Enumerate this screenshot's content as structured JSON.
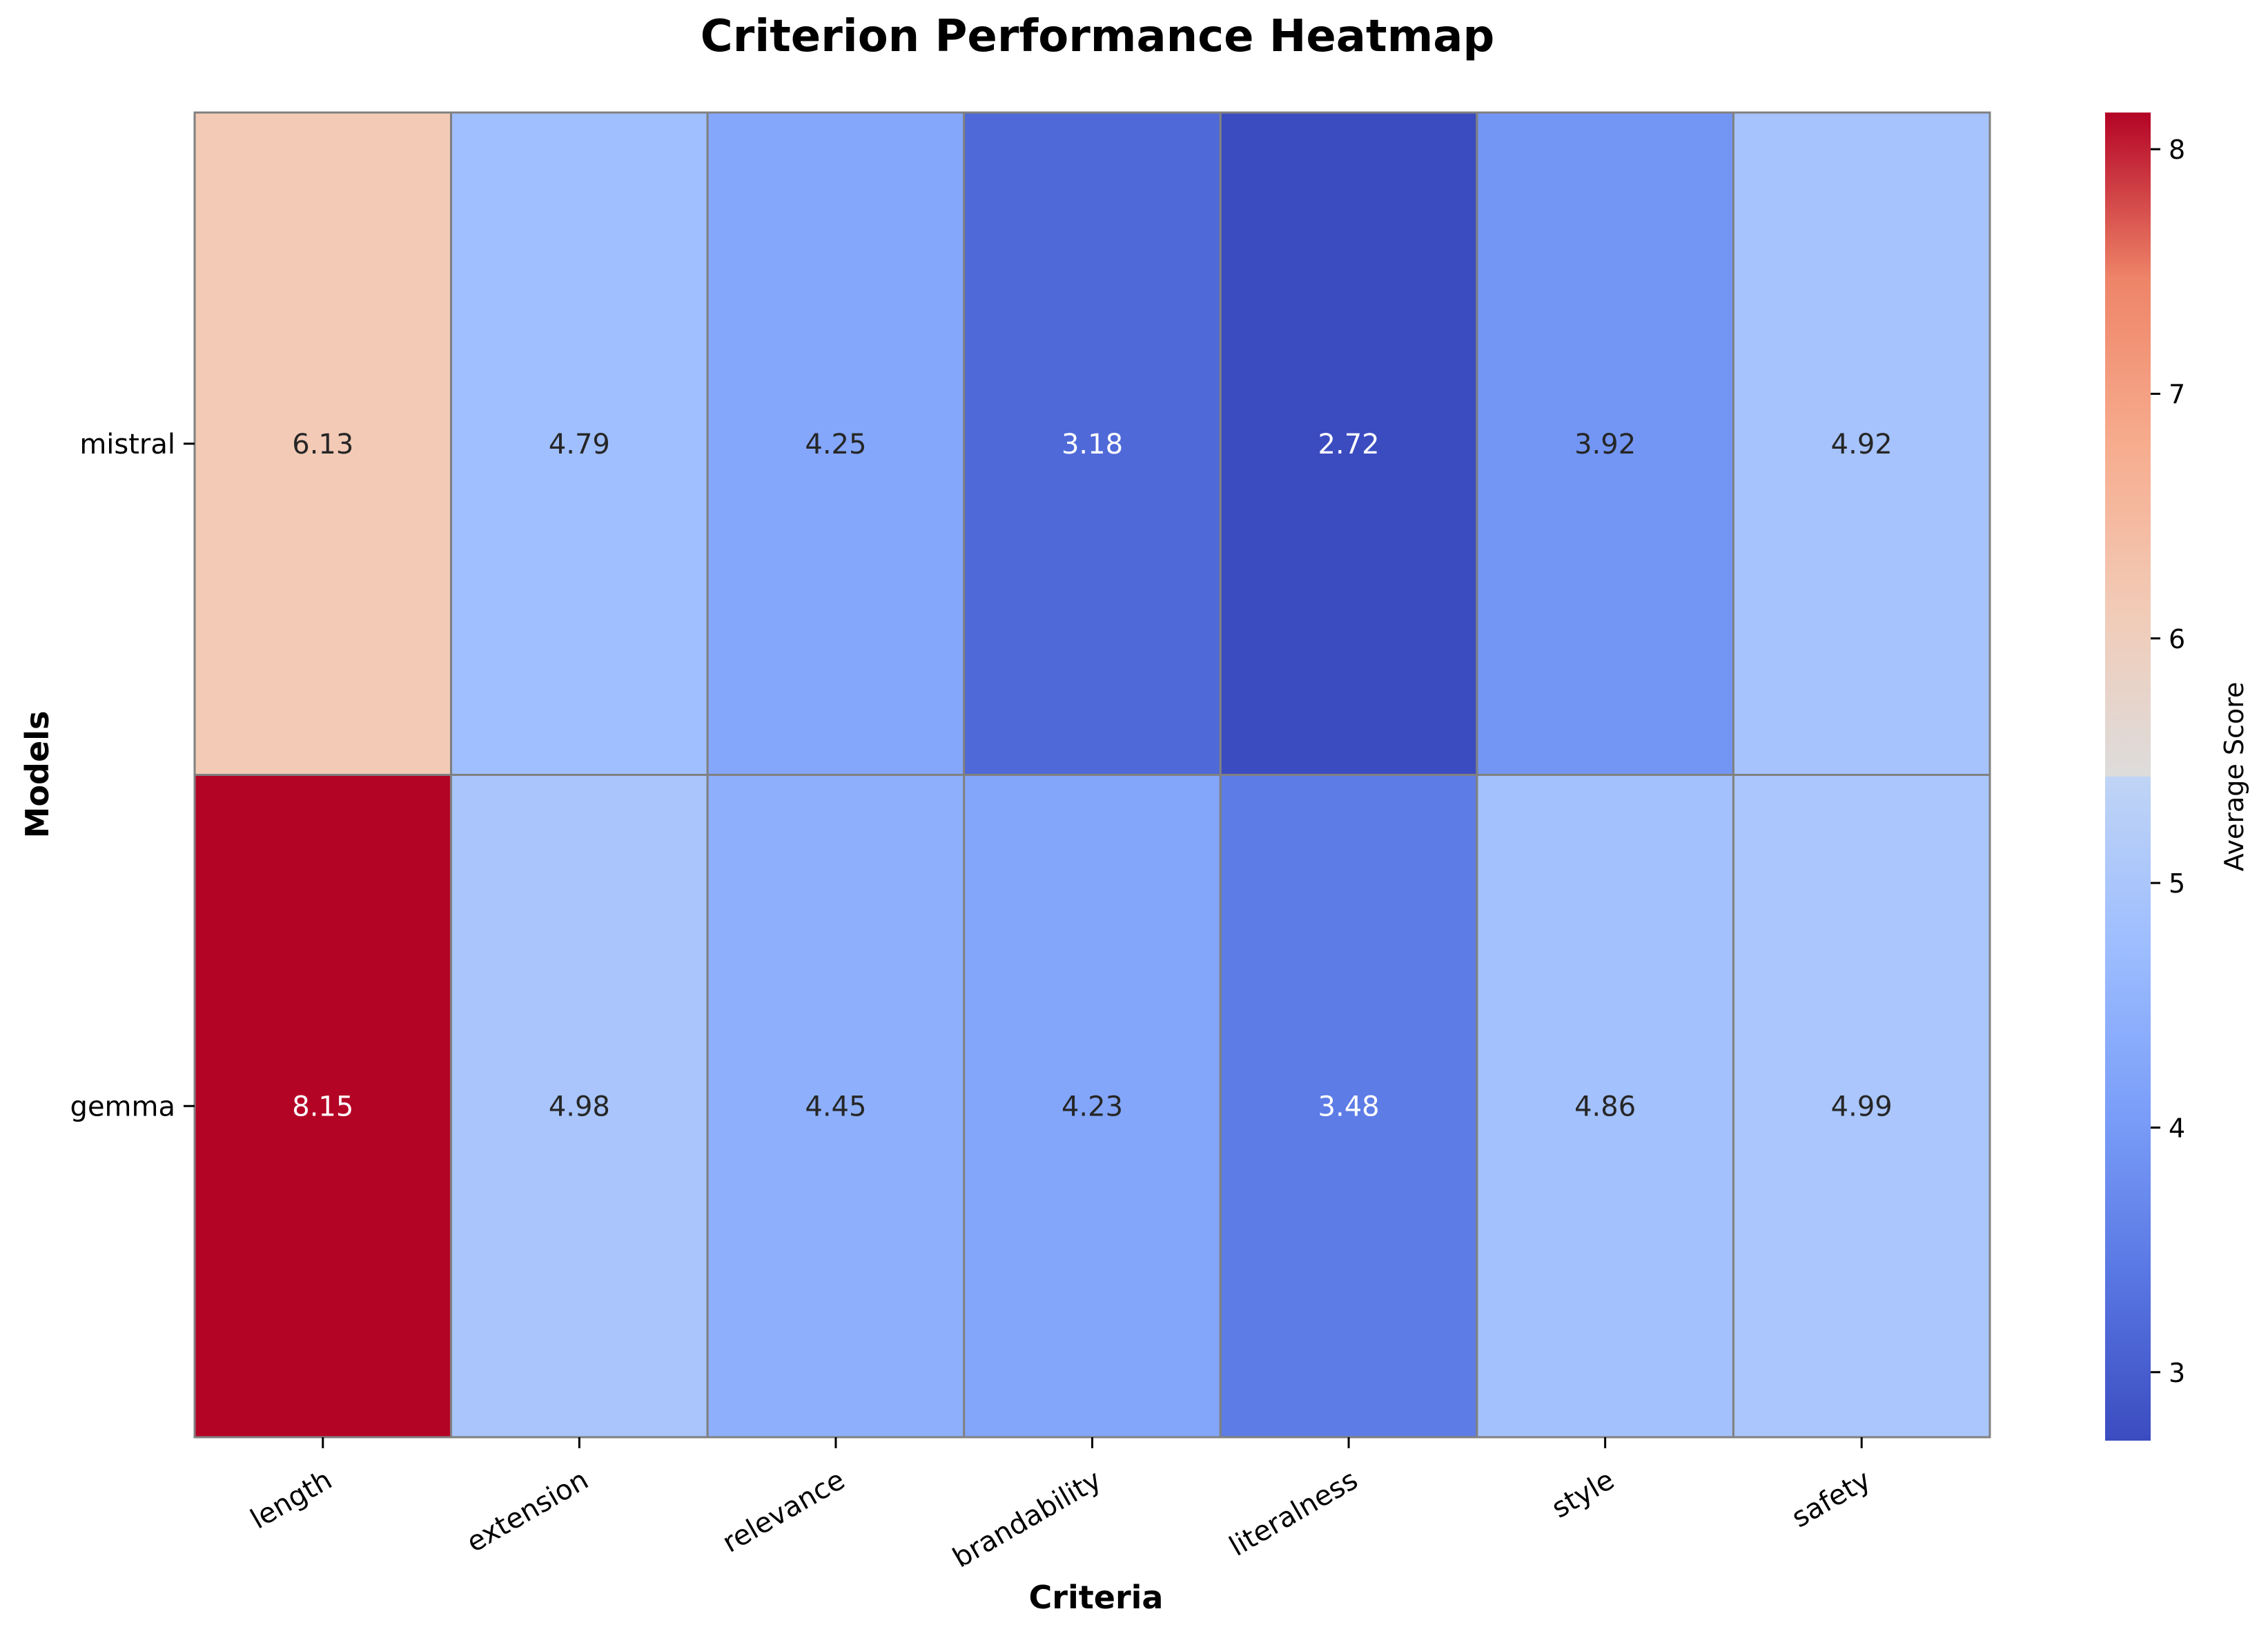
{
  "chart_data": {
    "type": "heatmap",
    "title": "Criterion Performance Heatmap",
    "xlabel": "Criteria",
    "ylabel": "Models",
    "x_categories": [
      "length",
      "extension",
      "relevance",
      "brandability",
      "literalness",
      "style",
      "safety"
    ],
    "y_categories": [
      "mistral",
      "gemma"
    ],
    "values": [
      [
        6.13,
        4.79,
        4.25,
        3.18,
        2.72,
        3.92,
        4.92
      ],
      [
        8.15,
        4.98,
        4.45,
        4.23,
        3.48,
        4.86,
        4.99
      ]
    ],
    "cell_labels": [
      [
        "6.13",
        "4.79",
        "4.25",
        "3.18",
        "2.72",
        "3.92",
        "4.92"
      ],
      [
        "8.15",
        "4.98",
        "4.45",
        "4.23",
        "3.48",
        "4.86",
        "4.99"
      ]
    ],
    "colorbar": {
      "label": "Average Score",
      "vmin": 2.72,
      "vmax": 8.15,
      "ticks": [
        3,
        4,
        5,
        6,
        7,
        8
      ],
      "tick_labels": [
        "3",
        "4",
        "5",
        "6",
        "7",
        "8"
      ],
      "colormap": "coolwarm"
    },
    "grid": false,
    "cell_border_color": "#808080",
    "legend": "colorbar-right"
  }
}
